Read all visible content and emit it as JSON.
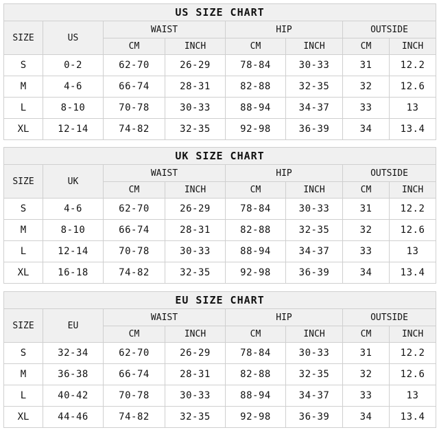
{
  "charts": [
    {
      "title": "US SIZE CHART",
      "headers": {
        "size": "SIZE",
        "region": "US",
        "waist": "WAIST",
        "hip": "HIP",
        "outside": "OUTSIDE",
        "cm": "CM",
        "inch": "INCH"
      },
      "rows": [
        {
          "size": "S",
          "region": "0-2",
          "waist_cm": "62-70",
          "waist_in": "26-29",
          "hip_cm": "78-84",
          "hip_in": "30-33",
          "out_cm": "31",
          "out_in": "12.2"
        },
        {
          "size": "M",
          "region": "4-6",
          "waist_cm": "66-74",
          "waist_in": "28-31",
          "hip_cm": "82-88",
          "hip_in": "32-35",
          "out_cm": "32",
          "out_in": "12.6"
        },
        {
          "size": "L",
          "region": "8-10",
          "waist_cm": "70-78",
          "waist_in": "30-33",
          "hip_cm": "88-94",
          "hip_in": "34-37",
          "out_cm": "33",
          "out_in": "13"
        },
        {
          "size": "XL",
          "region": "12-14",
          "waist_cm": "74-82",
          "waist_in": "32-35",
          "hip_cm": "92-98",
          "hip_in": "36-39",
          "out_cm": "34",
          "out_in": "13.4"
        }
      ]
    },
    {
      "title": "UK SIZE CHART",
      "headers": {
        "size": "SIZE",
        "region": "UK",
        "waist": "WAIST",
        "hip": "HIP",
        "outside": "OUTSIDE",
        "cm": "CM",
        "inch": "INCH"
      },
      "rows": [
        {
          "size": "S",
          "region": "4-6",
          "waist_cm": "62-70",
          "waist_in": "26-29",
          "hip_cm": "78-84",
          "hip_in": "30-33",
          "out_cm": "31",
          "out_in": "12.2"
        },
        {
          "size": "M",
          "region": "8-10",
          "waist_cm": "66-74",
          "waist_in": "28-31",
          "hip_cm": "82-88",
          "hip_in": "32-35",
          "out_cm": "32",
          "out_in": "12.6"
        },
        {
          "size": "L",
          "region": "12-14",
          "waist_cm": "70-78",
          "waist_in": "30-33",
          "hip_cm": "88-94",
          "hip_in": "34-37",
          "out_cm": "33",
          "out_in": "13"
        },
        {
          "size": "XL",
          "region": "16-18",
          "waist_cm": "74-82",
          "waist_in": "32-35",
          "hip_cm": "92-98",
          "hip_in": "36-39",
          "out_cm": "34",
          "out_in": "13.4"
        }
      ]
    },
    {
      "title": "EU SIZE CHART",
      "headers": {
        "size": "SIZE",
        "region": "EU",
        "waist": "WAIST",
        "hip": "HIP",
        "outside": "OUTSIDE",
        "cm": "CM",
        "inch": "INCH"
      },
      "rows": [
        {
          "size": "S",
          "region": "32-34",
          "waist_cm": "62-70",
          "waist_in": "26-29",
          "hip_cm": "78-84",
          "hip_in": "30-33",
          "out_cm": "31",
          "out_in": "12.2"
        },
        {
          "size": "M",
          "region": "36-38",
          "waist_cm": "66-74",
          "waist_in": "28-31",
          "hip_cm": "82-88",
          "hip_in": "32-35",
          "out_cm": "32",
          "out_in": "12.6"
        },
        {
          "size": "L",
          "region": "40-42",
          "waist_cm": "70-78",
          "waist_in": "30-33",
          "hip_cm": "88-94",
          "hip_in": "34-37",
          "out_cm": "33",
          "out_in": "13"
        },
        {
          "size": "XL",
          "region": "44-46",
          "waist_cm": "74-82",
          "waist_in": "32-35",
          "hip_cm": "92-98",
          "hip_in": "36-39",
          "out_cm": "34",
          "out_in": "13.4"
        }
      ]
    }
  ]
}
